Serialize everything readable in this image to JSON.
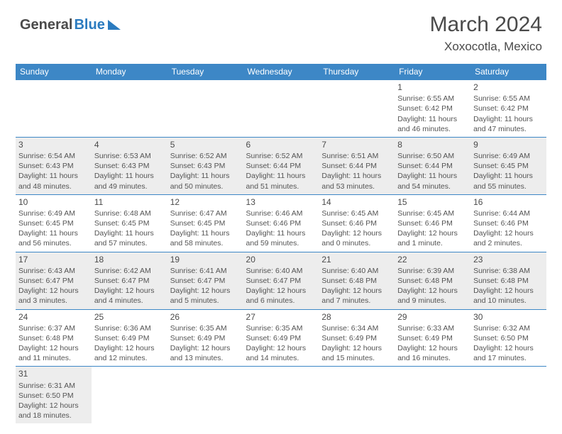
{
  "brand": {
    "part1": "General",
    "part2": "Blue"
  },
  "title": {
    "month_year": "March 2024",
    "location": "Xoxocotla, Mexico"
  },
  "colors": {
    "header_bg": "#3d87c6",
    "alt_row": "#ededed",
    "rule": "#3d87c6",
    "text": "#545454"
  },
  "day_headers": [
    "Sunday",
    "Monday",
    "Tuesday",
    "Wednesday",
    "Thursday",
    "Friday",
    "Saturday"
  ],
  "weeks": [
    [
      null,
      null,
      null,
      null,
      null,
      {
        "n": "1",
        "sr": "Sunrise: 6:55 AM",
        "ss": "Sunset: 6:42 PM",
        "d1": "Daylight: 11 hours",
        "d2": "and 46 minutes."
      },
      {
        "n": "2",
        "sr": "Sunrise: 6:55 AM",
        "ss": "Sunset: 6:42 PM",
        "d1": "Daylight: 11 hours",
        "d2": "and 47 minutes."
      }
    ],
    [
      {
        "n": "3",
        "sr": "Sunrise: 6:54 AM",
        "ss": "Sunset: 6:43 PM",
        "d1": "Daylight: 11 hours",
        "d2": "and 48 minutes."
      },
      {
        "n": "4",
        "sr": "Sunrise: 6:53 AM",
        "ss": "Sunset: 6:43 PM",
        "d1": "Daylight: 11 hours",
        "d2": "and 49 minutes."
      },
      {
        "n": "5",
        "sr": "Sunrise: 6:52 AM",
        "ss": "Sunset: 6:43 PM",
        "d1": "Daylight: 11 hours",
        "d2": "and 50 minutes."
      },
      {
        "n": "6",
        "sr": "Sunrise: 6:52 AM",
        "ss": "Sunset: 6:44 PM",
        "d1": "Daylight: 11 hours",
        "d2": "and 51 minutes."
      },
      {
        "n": "7",
        "sr": "Sunrise: 6:51 AM",
        "ss": "Sunset: 6:44 PM",
        "d1": "Daylight: 11 hours",
        "d2": "and 53 minutes."
      },
      {
        "n": "8",
        "sr": "Sunrise: 6:50 AM",
        "ss": "Sunset: 6:44 PM",
        "d1": "Daylight: 11 hours",
        "d2": "and 54 minutes."
      },
      {
        "n": "9",
        "sr": "Sunrise: 6:49 AM",
        "ss": "Sunset: 6:45 PM",
        "d1": "Daylight: 11 hours",
        "d2": "and 55 minutes."
      }
    ],
    [
      {
        "n": "10",
        "sr": "Sunrise: 6:49 AM",
        "ss": "Sunset: 6:45 PM",
        "d1": "Daylight: 11 hours",
        "d2": "and 56 minutes."
      },
      {
        "n": "11",
        "sr": "Sunrise: 6:48 AM",
        "ss": "Sunset: 6:45 PM",
        "d1": "Daylight: 11 hours",
        "d2": "and 57 minutes."
      },
      {
        "n": "12",
        "sr": "Sunrise: 6:47 AM",
        "ss": "Sunset: 6:45 PM",
        "d1": "Daylight: 11 hours",
        "d2": "and 58 minutes."
      },
      {
        "n": "13",
        "sr": "Sunrise: 6:46 AM",
        "ss": "Sunset: 6:46 PM",
        "d1": "Daylight: 11 hours",
        "d2": "and 59 minutes."
      },
      {
        "n": "14",
        "sr": "Sunrise: 6:45 AM",
        "ss": "Sunset: 6:46 PM",
        "d1": "Daylight: 12 hours",
        "d2": "and 0 minutes."
      },
      {
        "n": "15",
        "sr": "Sunrise: 6:45 AM",
        "ss": "Sunset: 6:46 PM",
        "d1": "Daylight: 12 hours",
        "d2": "and 1 minute."
      },
      {
        "n": "16",
        "sr": "Sunrise: 6:44 AM",
        "ss": "Sunset: 6:46 PM",
        "d1": "Daylight: 12 hours",
        "d2": "and 2 minutes."
      }
    ],
    [
      {
        "n": "17",
        "sr": "Sunrise: 6:43 AM",
        "ss": "Sunset: 6:47 PM",
        "d1": "Daylight: 12 hours",
        "d2": "and 3 minutes."
      },
      {
        "n": "18",
        "sr": "Sunrise: 6:42 AM",
        "ss": "Sunset: 6:47 PM",
        "d1": "Daylight: 12 hours",
        "d2": "and 4 minutes."
      },
      {
        "n": "19",
        "sr": "Sunrise: 6:41 AM",
        "ss": "Sunset: 6:47 PM",
        "d1": "Daylight: 12 hours",
        "d2": "and 5 minutes."
      },
      {
        "n": "20",
        "sr": "Sunrise: 6:40 AM",
        "ss": "Sunset: 6:47 PM",
        "d1": "Daylight: 12 hours",
        "d2": "and 6 minutes."
      },
      {
        "n": "21",
        "sr": "Sunrise: 6:40 AM",
        "ss": "Sunset: 6:48 PM",
        "d1": "Daylight: 12 hours",
        "d2": "and 7 minutes."
      },
      {
        "n": "22",
        "sr": "Sunrise: 6:39 AM",
        "ss": "Sunset: 6:48 PM",
        "d1": "Daylight: 12 hours",
        "d2": "and 9 minutes."
      },
      {
        "n": "23",
        "sr": "Sunrise: 6:38 AM",
        "ss": "Sunset: 6:48 PM",
        "d1": "Daylight: 12 hours",
        "d2": "and 10 minutes."
      }
    ],
    [
      {
        "n": "24",
        "sr": "Sunrise: 6:37 AM",
        "ss": "Sunset: 6:48 PM",
        "d1": "Daylight: 12 hours",
        "d2": "and 11 minutes."
      },
      {
        "n": "25",
        "sr": "Sunrise: 6:36 AM",
        "ss": "Sunset: 6:49 PM",
        "d1": "Daylight: 12 hours",
        "d2": "and 12 minutes."
      },
      {
        "n": "26",
        "sr": "Sunrise: 6:35 AM",
        "ss": "Sunset: 6:49 PM",
        "d1": "Daylight: 12 hours",
        "d2": "and 13 minutes."
      },
      {
        "n": "27",
        "sr": "Sunrise: 6:35 AM",
        "ss": "Sunset: 6:49 PM",
        "d1": "Daylight: 12 hours",
        "d2": "and 14 minutes."
      },
      {
        "n": "28",
        "sr": "Sunrise: 6:34 AM",
        "ss": "Sunset: 6:49 PM",
        "d1": "Daylight: 12 hours",
        "d2": "and 15 minutes."
      },
      {
        "n": "29",
        "sr": "Sunrise: 6:33 AM",
        "ss": "Sunset: 6:49 PM",
        "d1": "Daylight: 12 hours",
        "d2": "and 16 minutes."
      },
      {
        "n": "30",
        "sr": "Sunrise: 6:32 AM",
        "ss": "Sunset: 6:50 PM",
        "d1": "Daylight: 12 hours",
        "d2": "and 17 minutes."
      }
    ],
    [
      {
        "n": "31",
        "sr": "Sunrise: 6:31 AM",
        "ss": "Sunset: 6:50 PM",
        "d1": "Daylight: 12 hours",
        "d2": "and 18 minutes."
      },
      null,
      null,
      null,
      null,
      null,
      null
    ]
  ]
}
